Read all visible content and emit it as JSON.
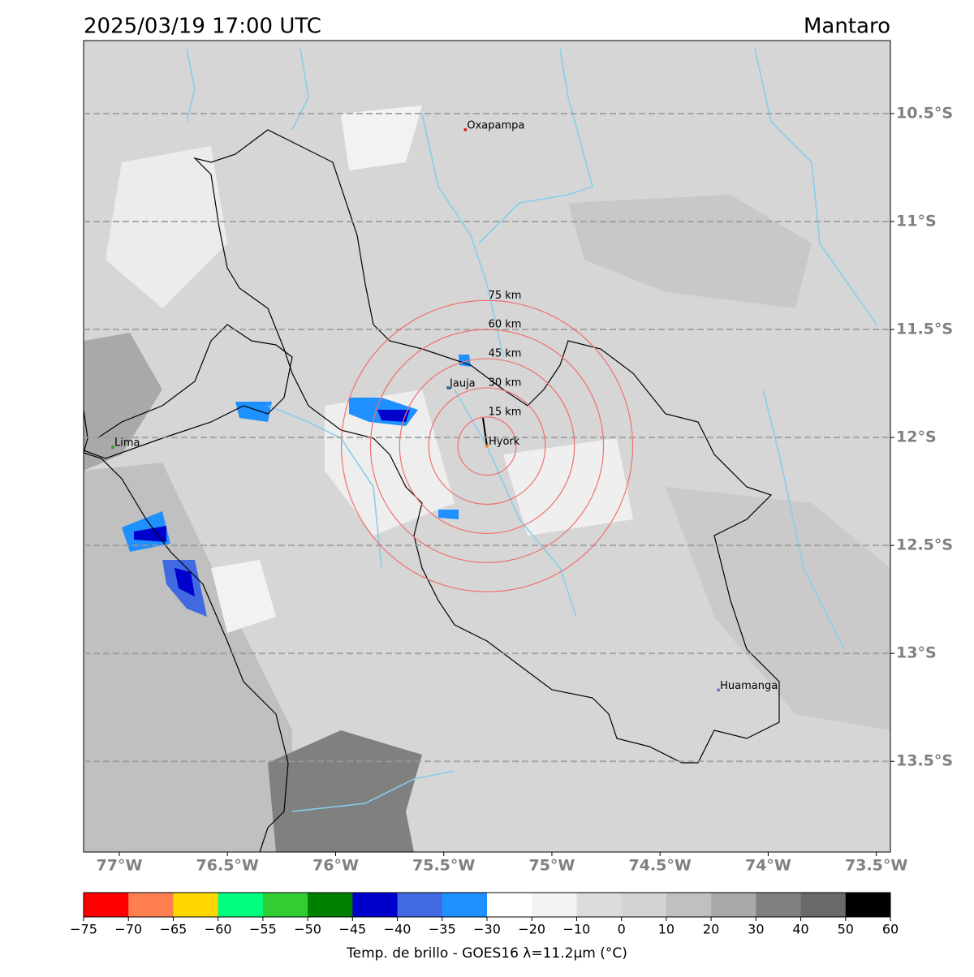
{
  "header": {
    "title": "2025/03/19 17:00 UTC",
    "region": "Mantaro"
  },
  "map": {
    "lonlim": [
      -77.165,
      -73.435
    ],
    "latlim": [
      -10.162,
      -13.92
    ],
    "lon_ticks": [
      {
        "value": -77,
        "label": "77°W"
      },
      {
        "value": -76.5,
        "label": "76.5°W"
      },
      {
        "value": -76,
        "label": "76°W"
      },
      {
        "value": -75.5,
        "label": "75.5°W"
      },
      {
        "value": -75,
        "label": "75°W"
      },
      {
        "value": -74.5,
        "label": "74.5°W"
      },
      {
        "value": -74,
        "label": "74°W"
      },
      {
        "value": -73.5,
        "label": "73.5°W"
      }
    ],
    "lat_ticks": [
      {
        "value": -10.5,
        "label": "10.5°S"
      },
      {
        "value": -11,
        "label": "11°S"
      },
      {
        "value": -11.5,
        "label": "11.5°S"
      },
      {
        "value": -12,
        "label": "12°S"
      },
      {
        "value": -12.5,
        "label": "12.5°S"
      },
      {
        "value": -13,
        "label": "13°S"
      },
      {
        "value": -13.5,
        "label": "13.5°S"
      }
    ],
    "grid": true,
    "center": {
      "lon": -75.3,
      "lat": -12.04
    },
    "rings": [
      {
        "value": 15,
        "label": "15 km"
      },
      {
        "value": 30,
        "label": "30 km"
      },
      {
        "value": 45,
        "label": "45 km"
      },
      {
        "value": 60,
        "label": "60 km"
      },
      {
        "value": 75,
        "label": "75 km"
      }
    ],
    "ring_color": "#f07070",
    "cities": [
      {
        "name": "Oxapampa",
        "lon": -75.4,
        "lat": -10.575,
        "color": "#d62728"
      },
      {
        "name": "Jauja",
        "lon": -75.48,
        "lat": -11.77,
        "color": "#1f77b4"
      },
      {
        "name": "Hyork",
        "lon": -75.3,
        "lat": -12.04,
        "color": "#ff7f0e"
      },
      {
        "name": "Lima",
        "lon": -77.03,
        "lat": -12.045,
        "color": "#2ca02c"
      },
      {
        "name": "Huamanga",
        "lon": -74.23,
        "lat": -13.17,
        "color": "#9467bd"
      }
    ]
  },
  "colorbar": {
    "bounds": [
      {
        "value": -75,
        "label": "−75"
      },
      {
        "value": -70,
        "label": "−70"
      },
      {
        "value": -65,
        "label": "−65"
      },
      {
        "value": -60,
        "label": "−60"
      },
      {
        "value": -55,
        "label": "−55"
      },
      {
        "value": -50,
        "label": "−50"
      },
      {
        "value": -45,
        "label": "−45"
      },
      {
        "value": -40,
        "label": "−40"
      },
      {
        "value": -35,
        "label": "−35"
      },
      {
        "value": -30,
        "label": "−30"
      },
      {
        "value": -20,
        "label": "−20"
      },
      {
        "value": -10,
        "label": "−10"
      },
      0,
      10,
      20,
      30,
      40,
      50,
      60
    ],
    "colors": [
      "#ff0000",
      "#ff7f50",
      "#ffd700",
      "#00ff7f",
      "#32cd32",
      "#008000",
      "#0000cd",
      "#4169e1",
      "#1e90ff",
      "#ffffff",
      "#f2f2f2",
      "#dcdcdc",
      "#d3d3d3",
      "#c0c0c0",
      "#a9a9a9",
      "#808080",
      "#696969",
      "#000000"
    ],
    "label": "Temp. de brillo - GOES16 λ=11.2μm (°C)"
  }
}
